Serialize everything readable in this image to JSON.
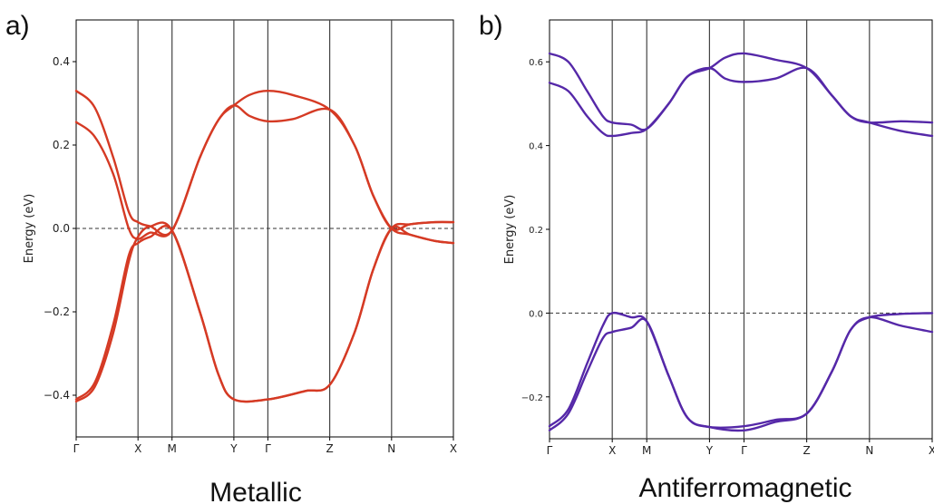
{
  "colors": {
    "metallic": "#d53a24",
    "antiferromagnetic": "#5528a8",
    "axis": "#000000",
    "kline": "#444444",
    "zero": "#333333"
  },
  "panel_labels": [
    "a)",
    "b)"
  ],
  "chart_data": [
    {
      "type": "line",
      "panel_label": "a)",
      "caption": "Metallic",
      "ylabel": "Energy (eV)",
      "xlabel": "",
      "ylim": [
        -0.5,
        0.5
      ],
      "yticks": [
        0.4,
        0.2,
        0.0,
        -0.2,
        -0.4
      ],
      "ytick_labels": [
        "0.4",
        "0.2",
        "0.0",
        "−0.2",
        "−0.4"
      ],
      "kpoints": [
        "Γ",
        "X",
        "M",
        "Y",
        "Γ",
        "Z",
        "N",
        "X"
      ],
      "kpoint_positions": [
        0,
        1,
        1.55,
        2.55,
        3.1,
        4.1,
        5.1,
        6.1
      ],
      "xlim": [
        0,
        6.1
      ],
      "zero_line": 0.0,
      "grid": false,
      "series": [
        {
          "x": [
            0,
            0.3,
            0.6,
            0.85,
            1.0,
            1.2,
            1.55,
            2.0,
            2.3,
            2.55,
            2.8,
            3.1,
            3.5,
            4.1,
            4.5,
            4.8,
            5.1,
            5.4,
            5.8,
            6.1
          ],
          "values": [
            0.33,
            0.29,
            0.17,
            0.04,
            0.015,
            0.005,
            -0.005,
            0.17,
            0.26,
            0.295,
            0.32,
            0.33,
            0.32,
            0.285,
            0.2,
            0.08,
            0.0,
            0.01,
            0.015,
            0.015
          ]
        },
        {
          "x": [
            0,
            0.3,
            0.6,
            0.85,
            1.0,
            1.2,
            1.55,
            2.0,
            2.3,
            2.55,
            2.8,
            3.1,
            3.5,
            4.1,
            4.5,
            4.8,
            5.1,
            5.4,
            5.8,
            6.1
          ],
          "values": [
            0.255,
            0.22,
            0.13,
            0.0,
            -0.025,
            -0.01,
            -0.005,
            0.17,
            0.26,
            0.295,
            0.27,
            0.257,
            0.262,
            0.285,
            0.2,
            0.08,
            0.0,
            -0.015,
            -0.03,
            -0.035
          ]
        },
        {
          "x": [
            0,
            0.3,
            0.6,
            0.85,
            1.0,
            1.2,
            1.55,
            2.0,
            2.3,
            2.55,
            3.1,
            3.7,
            4.1,
            4.5,
            4.8,
            5.1,
            5.4,
            5.8,
            6.1
          ],
          "values": [
            -0.415,
            -0.38,
            -0.25,
            -0.08,
            -0.02,
            0.005,
            -0.005,
            -0.2,
            -0.35,
            -0.41,
            -0.41,
            -0.39,
            -0.375,
            -0.25,
            -0.1,
            0.0,
            0.01,
            0.015,
            0.015
          ]
        },
        {
          "x": [
            0,
            0.3,
            0.6,
            0.85,
            1.0,
            1.2,
            1.55,
            2.0,
            2.3,
            2.55,
            3.1,
            3.7,
            4.1,
            4.5,
            4.8,
            5.1,
            5.4,
            5.8,
            6.1
          ],
          "values": [
            -0.41,
            -0.37,
            -0.23,
            -0.065,
            -0.035,
            -0.02,
            -0.005,
            -0.2,
            -0.35,
            -0.41,
            -0.41,
            -0.39,
            -0.375,
            -0.25,
            -0.1,
            0.0,
            -0.015,
            -0.03,
            -0.035
          ]
        }
      ]
    },
    {
      "type": "line",
      "panel_label": "b)",
      "caption": "Antiferromagnetic",
      "ylabel": "Energy (eV)",
      "xlabel": "",
      "ylim": [
        -0.3,
        0.7
      ],
      "yticks": [
        0.6,
        0.4,
        0.2,
        0.0,
        -0.2
      ],
      "ytick_labels": [
        "0.6",
        "0.4",
        "0.2",
        "0.0",
        "−0.2"
      ],
      "kpoints": [
        "Γ",
        "X",
        "M",
        "Y",
        "Γ",
        "Z",
        "N",
        "X"
      ],
      "kpoint_positions": [
        0,
        1,
        1.55,
        2.55,
        3.1,
        4.1,
        5.1,
        6.1
      ],
      "xlim": [
        0,
        6.1
      ],
      "zero_line": 0.0,
      "grid": false,
      "series": [
        {
          "x": [
            0,
            0.3,
            0.6,
            0.85,
            1.0,
            1.3,
            1.55,
            1.9,
            2.2,
            2.55,
            2.8,
            3.1,
            3.6,
            4.1,
            4.5,
            4.8,
            5.1,
            5.6,
            6.1
          ],
          "values": [
            0.62,
            0.6,
            0.53,
            0.47,
            0.455,
            0.45,
            0.44,
            0.5,
            0.565,
            0.585,
            0.61,
            0.62,
            0.605,
            0.585,
            0.52,
            0.47,
            0.455,
            0.458,
            0.455
          ]
        },
        {
          "x": [
            0,
            0.3,
            0.6,
            0.85,
            1.0,
            1.3,
            1.55,
            1.9,
            2.2,
            2.55,
            2.8,
            3.1,
            3.6,
            4.1,
            4.5,
            4.8,
            5.1,
            5.6,
            6.1
          ],
          "values": [
            0.55,
            0.53,
            0.47,
            0.43,
            0.423,
            0.43,
            0.44,
            0.5,
            0.565,
            0.585,
            0.56,
            0.552,
            0.56,
            0.585,
            0.52,
            0.47,
            0.455,
            0.435,
            0.423
          ]
        },
        {
          "x": [
            0,
            0.3,
            0.6,
            0.85,
            1.0,
            1.3,
            1.55,
            1.9,
            2.2,
            2.55,
            3.1,
            3.6,
            4.1,
            4.5,
            4.8,
            5.1,
            5.6,
            6.1
          ],
          "values": [
            -0.27,
            -0.23,
            -0.12,
            -0.03,
            0.0,
            -0.01,
            -0.02,
            -0.15,
            -0.25,
            -0.272,
            -0.27,
            -0.255,
            -0.24,
            -0.14,
            -0.04,
            -0.01,
            -0.002,
            0.0
          ]
        },
        {
          "x": [
            0,
            0.3,
            0.6,
            0.85,
            1.0,
            1.3,
            1.55,
            1.9,
            2.2,
            2.55,
            3.1,
            3.6,
            4.1,
            4.5,
            4.8,
            5.1,
            5.6,
            6.1
          ],
          "values": [
            -0.28,
            -0.24,
            -0.14,
            -0.06,
            -0.045,
            -0.035,
            -0.02,
            -0.15,
            -0.25,
            -0.272,
            -0.28,
            -0.26,
            -0.24,
            -0.14,
            -0.04,
            -0.01,
            -0.03,
            -0.045
          ]
        }
      ]
    }
  ]
}
